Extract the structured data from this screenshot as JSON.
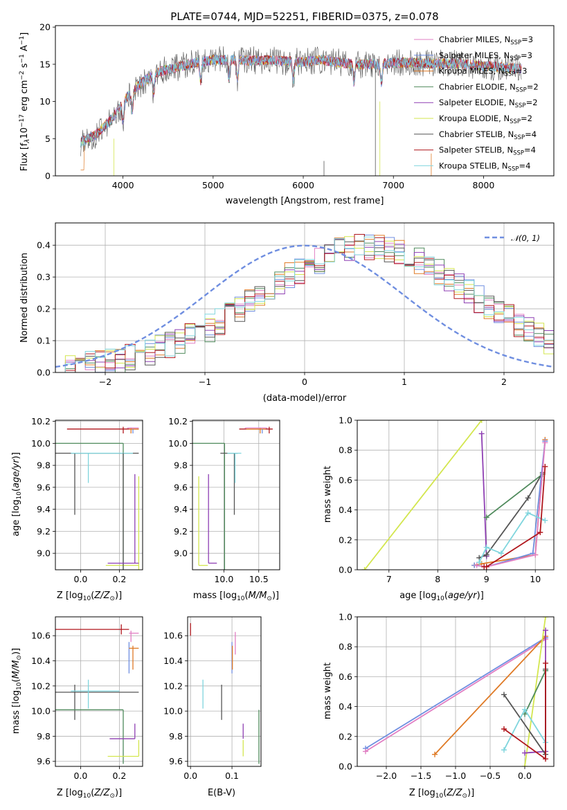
{
  "figure": {
    "title": "PLATE=0744, MJD=52251, FIBERID=0375, z=0.078"
  },
  "colors": {
    "chabrier_miles": "#e17fc3",
    "salpeter_miles": "#6f8ee0",
    "kroupa_miles": "#df7a25",
    "chabrier_elodie": "#4f8a5c",
    "salpeter_elodie": "#8e3fb3",
    "kroupa_elodie": "#d3e64e",
    "chabrier_stelib": "#555555",
    "salpeter_stelib": "#b0161c",
    "kroupa_stelib": "#7fd5dd",
    "gaussian": "#6f8ee0",
    "grid": "#b0b0b0"
  },
  "chart_data": [
    {
      "id": "spectrum",
      "type": "line",
      "title": "PLATE=0744, MJD=52251, FIBERID=0375, z=0.078",
      "xlabel": "wavelength [Angstrom, rest frame]",
      "ylabel": "Flux [f_λ10^-17 erg cm^-2 s^-1 A^-1]",
      "xlim": [
        3250,
        8780
      ],
      "ylim": [
        0,
        20.2
      ],
      "xticks": [
        "4000",
        "5000",
        "6000",
        "7000",
        "8000"
      ],
      "yticks": [
        "0",
        "5",
        "10",
        "15",
        "20"
      ],
      "grid": false,
      "legend_position": "right",
      "series": [
        {
          "name": "Chabrier MILES, N_SSP=3",
          "color": "#e17fc3"
        },
        {
          "name": "Salpeter MILES, N_SSP=3",
          "color": "#6f8ee0"
        },
        {
          "name": "Kroupa MILES, N_SSP=3",
          "color": "#df7a25"
        },
        {
          "name": "Chabrier ELODIE, N_SSP=2",
          "color": "#4f8a5c"
        },
        {
          "name": "Salpeter ELODIE, N_SSP=2",
          "color": "#8e3fb3"
        },
        {
          "name": "Kroupa ELODIE, N_SSP=2",
          "color": "#d3e64e"
        },
        {
          "name": "Chabrier STELIB, N_SSP=4",
          "color": "#555555"
        },
        {
          "name": "Salpeter STELIB, N_SSP=4",
          "color": "#b0161c"
        },
        {
          "name": "Kroupa STELIB, N_SSP=4",
          "color": "#7fd5dd"
        }
      ],
      "continuum_x": [
        3530,
        3700,
        3900,
        4000,
        4200,
        4400,
        4600,
        4800,
        5000,
        5200,
        5400,
        5600,
        5800,
        6000,
        6200,
        6400,
        6600,
        6800,
        7000,
        7200,
        7400,
        7600,
        7800,
        8000,
        8200,
        8400
      ],
      "continuum_y": [
        4.5,
        5.5,
        8.0,
        10.0,
        12.5,
        14.0,
        14.6,
        15.2,
        15.6,
        15.6,
        15.5,
        15.6,
        15.4,
        15.3,
        15.6,
        15.2,
        15.0,
        15.0,
        15.2,
        15.2,
        15.1,
        15.1,
        15.0,
        14.8,
        14.6,
        14.4
      ]
    },
    {
      "id": "residuals",
      "type": "histogram",
      "xlabel": "(data-model)/error",
      "ylabel": "Normed distribution",
      "xlim": [
        -2.5,
        2.5
      ],
      "ylim": [
        0,
        0.47
      ],
      "xticks": [
        "−2",
        "−1",
        "0",
        "1",
        "2"
      ],
      "yticks": [
        "0.0",
        "0.1",
        "0.2",
        "0.3",
        "0.4"
      ],
      "grid": true,
      "legend": [
        "𝒩(0, 1)"
      ],
      "legend_position": "upper right",
      "bin_width": 0.1,
      "envelope_x": [
        -2.5,
        -2.0,
        -1.5,
        -1.0,
        -0.5,
        0.0,
        0.5,
        1.0,
        1.5,
        2.0,
        2.5
      ],
      "envelope_y": [
        0.01,
        0.03,
        0.07,
        0.13,
        0.23,
        0.33,
        0.4,
        0.38,
        0.28,
        0.18,
        0.09
      ],
      "gaussian": {
        "mean": 0,
        "sigma": 1
      }
    },
    {
      "id": "age_vs_Z",
      "type": "scatter",
      "xlabel": "Z [log10(Z/Z⊙)]",
      "ylabel": "age  [log10(age/yr)]",
      "xlim": [
        -0.13,
        0.32
      ],
      "ylim": [
        8.85,
        10.21
      ],
      "xticks": [
        "0.0",
        "0.2"
      ],
      "yticks": [
        "9.0",
        "9.2",
        "9.4",
        "9.6",
        "9.8",
        "10.0",
        "10.2"
      ],
      "grid": true
    },
    {
      "id": "age_vs_mass",
      "type": "scatter",
      "xlabel": "mass [log10(M/M⊙)]",
      "ylabel": "",
      "xlim": [
        9.55,
        10.8
      ],
      "ylim": [
        8.85,
        10.21
      ],
      "xticks": [
        "10.0",
        "10.5"
      ],
      "yticks": [
        "9.0",
        "9.2",
        "9.4",
        "9.6",
        "9.8",
        "10.0",
        "10.2"
      ],
      "grid": true
    },
    {
      "id": "weight_vs_age",
      "type": "line",
      "xlabel": "age  [log10(age/yr)]",
      "ylabel": "mass weight",
      "xlim": [
        6.35,
        10.38
      ],
      "ylim": [
        0,
        1.0
      ],
      "xticks": [
        "7",
        "8",
        "9",
        "10"
      ],
      "yticks": [
        "0.0",
        "0.2",
        "0.4",
        "0.6",
        "0.8",
        "1.0"
      ],
      "grid": true,
      "series": [
        {
          "color": "#d3e64e",
          "x": [
            6.5,
            8.9
          ],
          "y": [
            0.0,
            1.0
          ]
        },
        {
          "color": "#8e3fb3",
          "x": [
            8.9,
            9.0,
            9.0
          ],
          "y": [
            0.91,
            0.09,
            0.1
          ]
        },
        {
          "color": "#4f8a5c",
          "x": [
            9.0,
            10.15
          ],
          "y": [
            0.35,
            0.64
          ]
        },
        {
          "color": "#555555",
          "x": [
            8.85,
            9.0,
            9.85,
            10.15
          ],
          "y": [
            0.08,
            0.1,
            0.48,
            0.65
          ]
        },
        {
          "color": "#df7a25",
          "x": [
            8.75,
            8.9,
            10.0,
            10.2
          ],
          "y": [
            0.03,
            0.04,
            0.1,
            0.87
          ]
        },
        {
          "color": "#6f8ee0",
          "x": [
            8.75,
            9.0,
            9.95,
            10.2
          ],
          "y": [
            0.03,
            0.02,
            0.11,
            0.86
          ]
        },
        {
          "color": "#e17fc3",
          "x": [
            8.8,
            9.0,
            10.0,
            10.2
          ],
          "y": [
            0.03,
            0.02,
            0.1,
            0.85
          ]
        },
        {
          "color": "#7fd5dd",
          "x": [
            8.85,
            9.0,
            9.3,
            9.85,
            10.2
          ],
          "y": [
            0.05,
            0.15,
            0.11,
            0.38,
            0.33
          ]
        },
        {
          "color": "#b0161c",
          "x": [
            8.95,
            9.0,
            10.1,
            10.2
          ],
          "y": [
            0.02,
            0.02,
            0.25,
            0.69
          ]
        }
      ]
    },
    {
      "id": "mass_vs_Z",
      "type": "scatter",
      "xlabel": "Z [log10(Z/Z⊙)]",
      "ylabel": "mass [log10(M/M⊙)]",
      "xlim": [
        -0.13,
        0.32
      ],
      "ylim": [
        9.56,
        10.75
      ],
      "xticks": [
        "0.0",
        "0.2"
      ],
      "yticks": [
        "9.6",
        "9.8",
        "10.0",
        "10.2",
        "10.4",
        "10.6"
      ],
      "grid": true
    },
    {
      "id": "mass_vs_ebv",
      "type": "scatter",
      "xlabel": "E(B-V)",
      "ylabel": "",
      "xlim": [
        -0.007,
        0.17
      ],
      "ylim": [
        9.56,
        10.75
      ],
      "xticks": [
        "0.0",
        "0.1"
      ],
      "yticks": [
        "9.6",
        "9.8",
        "10.0",
        "10.2",
        "10.4",
        "10.6"
      ],
      "grid": true
    },
    {
      "id": "weight_vs_Z",
      "type": "line",
      "xlabel": "Z [log10(Z/Z⊙)]",
      "ylabel": "mass weight",
      "xlim": [
        -2.42,
        0.42
      ],
      "ylim": [
        0,
        1.0
      ],
      "xticks": [
        "−2.0",
        "−1.5",
        "−1.0",
        "−0.5",
        "0.0"
      ],
      "yticks": [
        "0.0",
        "0.2",
        "0.4",
        "0.6",
        "0.8",
        "1.0"
      ],
      "grid": true,
      "series": [
        {
          "color": "#6f8ee0",
          "x": [
            -2.3,
            0.3
          ],
          "y": [
            0.12,
            0.86
          ]
        },
        {
          "color": "#e17fc3",
          "x": [
            -2.3,
            0.3
          ],
          "y": [
            0.1,
            0.85
          ]
        },
        {
          "color": "#df7a25",
          "x": [
            -1.3,
            0.3
          ],
          "y": [
            0.08,
            0.87
          ]
        },
        {
          "color": "#d3e64e",
          "x": [
            0.0,
            0.3
          ],
          "y": [
            0.0,
            1.0
          ]
        },
        {
          "color": "#4f8a5c",
          "x": [
            0.0,
            0.3
          ],
          "y": [
            0.35,
            0.64
          ]
        },
        {
          "color": "#8e3fb3",
          "x": [
            0.0,
            0.3,
            0.3
          ],
          "y": [
            0.09,
            0.1,
            0.91
          ]
        },
        {
          "color": "#555555",
          "x": [
            -0.3,
            0.3,
            0.3
          ],
          "y": [
            0.48,
            0.08,
            0.65
          ]
        },
        {
          "color": "#7fd5dd",
          "x": [
            -0.3,
            0.0,
            0.3
          ],
          "y": [
            0.11,
            0.38,
            0.16
          ]
        },
        {
          "color": "#b0161c",
          "x": [
            -0.3,
            0.3,
            0.3
          ],
          "y": [
            0.25,
            0.05,
            0.69
          ]
        }
      ]
    }
  ]
}
